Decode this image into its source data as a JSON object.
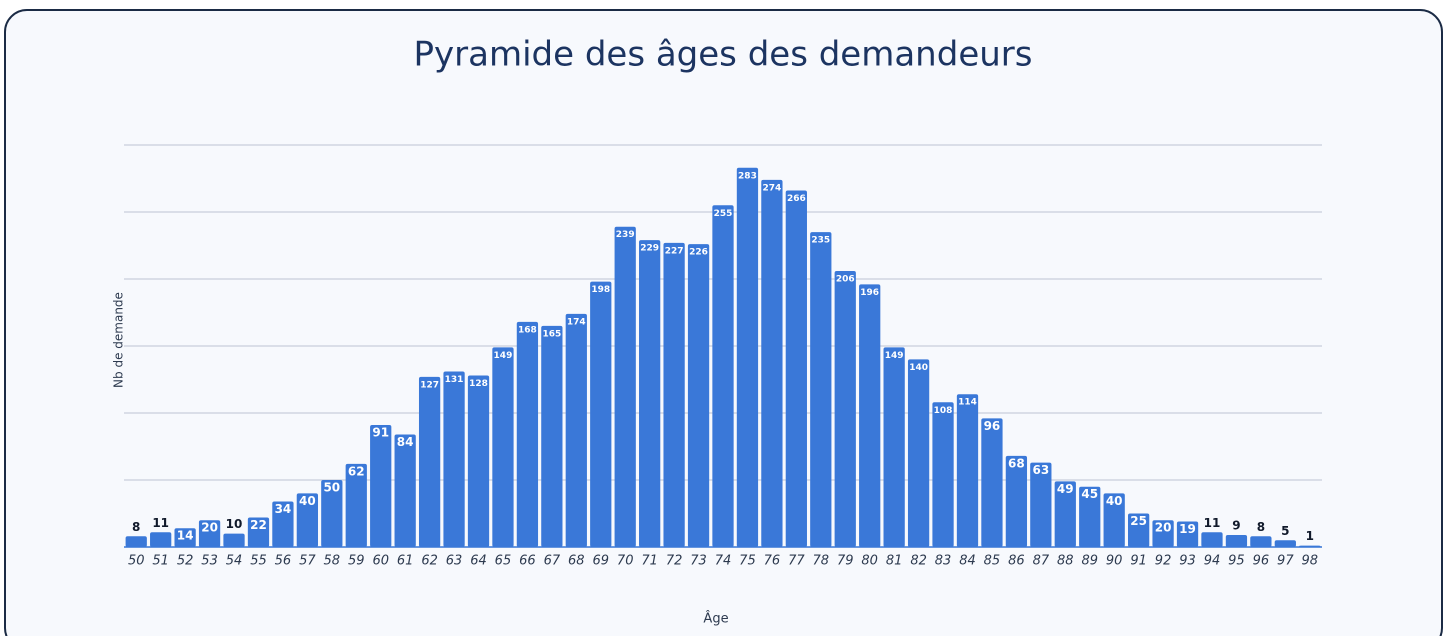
{
  "chart_data": {
    "type": "bar",
    "title": "Pyramide des âges des demandeurs",
    "x_label": "Âge",
    "y_label": "Nb de demande",
    "categories": [
      "50",
      "51",
      "52",
      "53",
      "54",
      "55",
      "56",
      "57",
      "58",
      "59",
      "60",
      "61",
      "62",
      "63",
      "64",
      "65",
      "66",
      "67",
      "68",
      "69",
      "70",
      "71",
      "72",
      "73",
      "74",
      "75",
      "76",
      "77",
      "78",
      "79",
      "80",
      "81",
      "82",
      "83",
      "84",
      "85",
      "86",
      "87",
      "88",
      "89",
      "90",
      "91",
      "92",
      "93",
      "94",
      "95",
      "96",
      "97",
      "98"
    ],
    "values": [
      8,
      11,
      14,
      20,
      10,
      22,
      34,
      40,
      50,
      62,
      91,
      84,
      127,
      131,
      128,
      149,
      168,
      165,
      174,
      198,
      239,
      229,
      227,
      226,
      255,
      283,
      274,
      266,
      235,
      206,
      196,
      149,
      140,
      108,
      114,
      96,
      68,
      63,
      49,
      45,
      40,
      25,
      20,
      19,
      11,
      9,
      8,
      5,
      1
    ],
    "color": "#3a78d8",
    "ylim": [
      0,
      300
    ],
    "yticks": [
      0,
      50,
      100,
      150,
      200,
      250,
      300
    ],
    "grid": true
  }
}
